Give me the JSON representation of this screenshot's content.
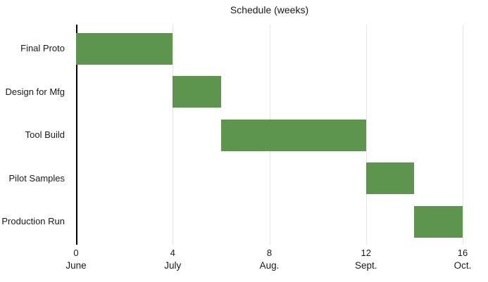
{
  "chart_data": {
    "type": "bar",
    "subtype": "gantt",
    "orientation": "horizontal",
    "title": "Schedule (weeks)",
    "xlabel": "",
    "ylabel": "",
    "xlim": [
      0,
      16
    ],
    "grid": "vertical",
    "legend": "none",
    "categories": [
      "Final Proto",
      "Design for Mfg",
      "Tool Build",
      "Pilot Samples",
      "Production Run"
    ],
    "bars": [
      {
        "task": "Final Proto",
        "start": 0,
        "end": 4
      },
      {
        "task": "Design for Mfg",
        "start": 4,
        "end": 6
      },
      {
        "task": "Tool Build",
        "start": 6,
        "end": 12
      },
      {
        "task": "Pilot Samples",
        "start": 12,
        "end": 14
      },
      {
        "task": "Production Run",
        "start": 14,
        "end": 16
      }
    ],
    "x_ticks": [
      {
        "value": 0,
        "label": "0",
        "month": "June"
      },
      {
        "value": 4,
        "label": "4",
        "month": "July"
      },
      {
        "value": 8,
        "label": "8",
        "month": "Aug."
      },
      {
        "value": 12,
        "label": "12",
        "month": "Sept."
      },
      {
        "value": 16,
        "label": "16",
        "month": "Oct."
      }
    ],
    "colors": {
      "bar": "#5d944e",
      "gridline": "#e4e4e4",
      "axis": "#000000",
      "text": "#1a1a1a"
    }
  }
}
